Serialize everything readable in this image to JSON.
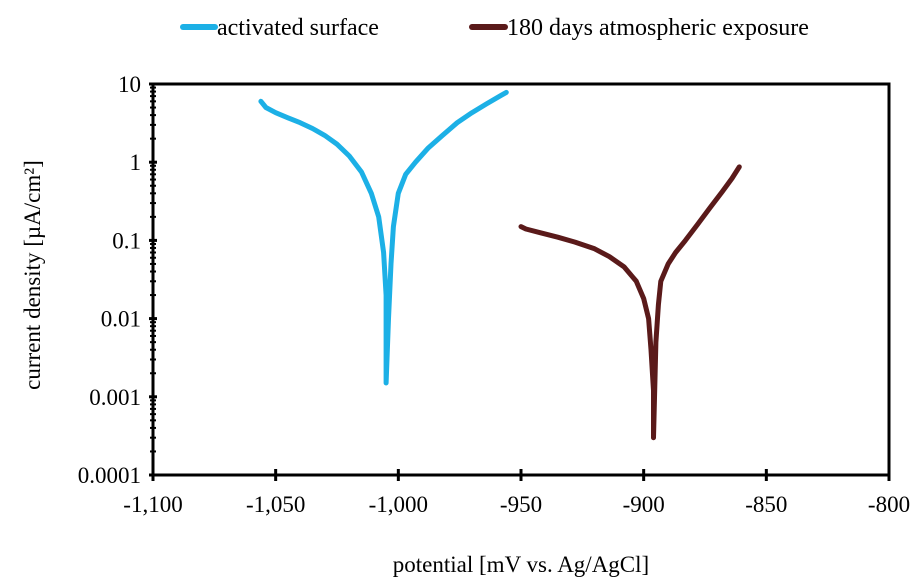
{
  "chart_data": {
    "type": "line",
    "xlabel": "potential  [mV vs. Ag/AgCl]",
    "ylabel": "current density  [µA/cm²]",
    "xlim": [
      -1100,
      -800
    ],
    "ylim": [
      0.0001,
      10
    ],
    "yscale": "log",
    "grid": false,
    "legend": "top",
    "x_ticks": [
      -1100,
      -1050,
      -1000,
      -950,
      -900,
      -850,
      -800
    ],
    "x_tick_labels": [
      "-1,100",
      "-1,050",
      "-1,000",
      "-950",
      "-900",
      "-850",
      "-800"
    ],
    "y_ticks": [
      0.0001,
      0.001,
      0.01,
      0.1,
      1,
      10
    ],
    "y_tick_labels": [
      "0.0001",
      "0.001",
      "0.01",
      "0.1",
      "1",
      "10"
    ],
    "series": [
      {
        "name": "activated surface",
        "color": "#1cb0e6",
        "points": [
          [
            -1056,
            6.0
          ],
          [
            -1054,
            5.0
          ],
          [
            -1050,
            4.3
          ],
          [
            -1045,
            3.7
          ],
          [
            -1040,
            3.2
          ],
          [
            -1035,
            2.7
          ],
          [
            -1030,
            2.2
          ],
          [
            -1025,
            1.7
          ],
          [
            -1020,
            1.2
          ],
          [
            -1015,
            0.75
          ],
          [
            -1011,
            0.4
          ],
          [
            -1008,
            0.2
          ],
          [
            -1006,
            0.07
          ],
          [
            -1005,
            0.02
          ],
          [
            -1005,
            0.005
          ],
          [
            -1005,
            0.0015
          ],
          [
            -1004,
            0.01
          ],
          [
            -1003,
            0.05
          ],
          [
            -1002,
            0.15
          ],
          [
            -1000,
            0.4
          ],
          [
            -997,
            0.7
          ],
          [
            -993,
            1.0
          ],
          [
            -988,
            1.5
          ],
          [
            -982,
            2.2
          ],
          [
            -976,
            3.2
          ],
          [
            -970,
            4.3
          ],
          [
            -964,
            5.6
          ],
          [
            -958,
            7.2
          ],
          [
            -956,
            7.8
          ]
        ]
      },
      {
        "name": "180 days atmospheric exposure",
        "color": "#5a1a1a",
        "points": [
          [
            -950,
            0.15
          ],
          [
            -948,
            0.14
          ],
          [
            -942,
            0.125
          ],
          [
            -935,
            0.11
          ],
          [
            -928,
            0.095
          ],
          [
            -920,
            0.078
          ],
          [
            -914,
            0.062
          ],
          [
            -908,
            0.046
          ],
          [
            -903,
            0.03
          ],
          [
            -900,
            0.018
          ],
          [
            -898,
            0.01
          ],
          [
            -897,
            0.004
          ],
          [
            -896,
            0.0012
          ],
          [
            -896,
            0.0003
          ],
          [
            -895,
            0.005
          ],
          [
            -894,
            0.015
          ],
          [
            -893,
            0.03
          ],
          [
            -890,
            0.05
          ],
          [
            -887,
            0.07
          ],
          [
            -883,
            0.1
          ],
          [
            -878,
            0.16
          ],
          [
            -873,
            0.26
          ],
          [
            -868,
            0.42
          ],
          [
            -864,
            0.62
          ],
          [
            -861,
            0.87
          ]
        ]
      }
    ]
  }
}
